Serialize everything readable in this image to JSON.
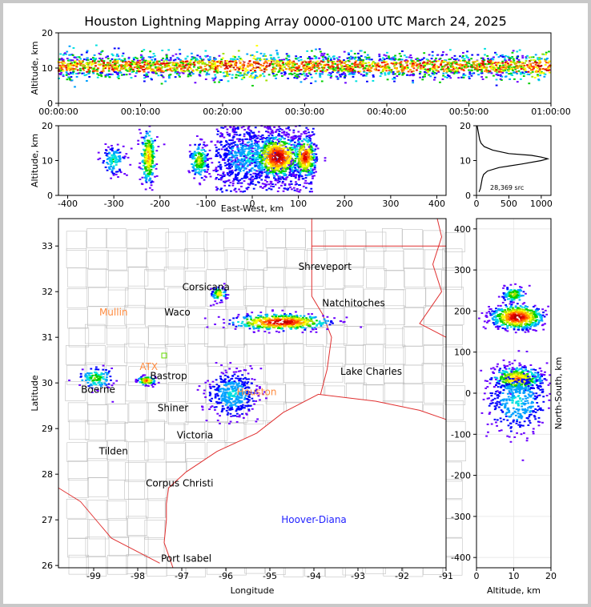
{
  "title": "Houston Lightning Mapping Array 0000-0100 UTC March 24, 2025",
  "colors": {
    "density_scale": [
      "#6a00ff",
      "#0000ff",
      "#00a0ff",
      "#00e0e0",
      "#00d000",
      "#a0e000",
      "#ffff00",
      "#ffa000",
      "#ff4000",
      "#e00000",
      "#b00000",
      "#ffffff"
    ],
    "coastline": "#e03030",
    "borders": "#c0c0c0",
    "state_border": "#e03030",
    "profile_line": "#000000"
  },
  "source_count_label": "28,369 src",
  "chart_data": [
    {
      "id": "time_altitude",
      "type": "scatter",
      "xlabel": "",
      "ylabel": "Altitude, km",
      "x_ticks": [
        "00:00:00",
        "00:10:00",
        "00:20:00",
        "00:30:00",
        "00:40:00",
        "00:50:00",
        "01:00:00"
      ],
      "xlim": [
        "00:00:00",
        "01:00:00"
      ],
      "ylim": [
        0,
        20
      ],
      "y_ticks": [
        0,
        10,
        20
      ],
      "band_center_km": 10.5,
      "band_half_width_km": 3.5
    },
    {
      "id": "eastwest_altitude",
      "type": "scatter",
      "xlabel": "East-West, km",
      "ylabel": "Altitude, km",
      "xlim": [
        -420,
        420
      ],
      "ylim": [
        0,
        20
      ],
      "x_ticks": [
        -400,
        -300,
        -200,
        -100,
        0,
        100,
        200,
        300,
        400
      ],
      "y_ticks": [
        0,
        10,
        20
      ],
      "clusters": [
        {
          "x": -300,
          "y": 10,
          "sx": 12,
          "sy": 2,
          "n": 120,
          "peak": 4
        },
        {
          "x": -225,
          "y": 11,
          "sx": 8,
          "sy": 4,
          "n": 260,
          "peak": 8
        },
        {
          "x": -115,
          "y": 10,
          "sx": 10,
          "sy": 2.5,
          "n": 180,
          "peak": 6
        },
        {
          "x": -5,
          "y": 11,
          "sx": 40,
          "sy": 4,
          "n": 500,
          "peak": 3
        },
        {
          "x": 55,
          "y": 11,
          "sx": 25,
          "sy": 3,
          "n": 600,
          "peak": 11
        },
        {
          "x": 115,
          "y": 11,
          "sx": 12,
          "sy": 3,
          "n": 300,
          "peak": 10
        }
      ]
    },
    {
      "id": "altitude_histogram",
      "type": "line",
      "xlim": [
        0,
        1150
      ],
      "ylim": [
        0,
        20
      ],
      "x_ticks": [
        0,
        500,
        1000
      ],
      "y_ticks": [
        0,
        10,
        20
      ],
      "points": [
        [
          40,
          1
        ],
        [
          60,
          2
        ],
        [
          70,
          3
        ],
        [
          80,
          4
        ],
        [
          90,
          5
        ],
        [
          110,
          6
        ],
        [
          170,
          7
        ],
        [
          350,
          8
        ],
        [
          700,
          9
        ],
        [
          1000,
          10
        ],
        [
          1100,
          10.5
        ],
        [
          1000,
          11
        ],
        [
          850,
          11.5
        ],
        [
          500,
          12
        ],
        [
          250,
          13
        ],
        [
          120,
          14
        ],
        [
          70,
          15
        ],
        [
          50,
          16
        ],
        [
          40,
          17
        ],
        [
          30,
          18
        ],
        [
          20,
          19
        ],
        [
          10,
          20
        ]
      ]
    },
    {
      "id": "plan_view",
      "type": "scatter",
      "xlabel": "Longitude",
      "ylabel": "Latitude",
      "xlim": [
        -99.8,
        -91
      ],
      "ylim": [
        25.95,
        33.6
      ],
      "x_ticks": [
        -99,
        -98,
        -97,
        -96,
        -95,
        -94,
        -93,
        -92,
        -91
      ],
      "y_ticks": [
        26,
        27,
        28,
        29,
        30,
        31,
        32,
        33
      ],
      "cities": [
        {
          "name": "Shreveport",
          "lon": -93.75,
          "lat": 32.55,
          "color": "#000000"
        },
        {
          "name": "Corsicana",
          "lon": -96.45,
          "lat": 32.1,
          "color": "#000000"
        },
        {
          "name": "Natchitoches",
          "lon": -93.1,
          "lat": 31.75,
          "color": "#000000"
        },
        {
          "name": "Mullin",
          "lon": -98.55,
          "lat": 31.55,
          "color": "#ff8c40"
        },
        {
          "name": "Waco",
          "lon": -97.1,
          "lat": 31.55,
          "color": "#000000"
        },
        {
          "name": "ATX",
          "lon": -97.75,
          "lat": 30.35,
          "color": "#ff8c40"
        },
        {
          "name": "Bastrop",
          "lon": -97.3,
          "lat": 30.15,
          "color": "#000000"
        },
        {
          "name": "Lake Charles",
          "lon": -92.7,
          "lat": 30.25,
          "color": "#000000"
        },
        {
          "name": "Boerne",
          "lon": -98.9,
          "lat": 29.85,
          "color": "#000000"
        },
        {
          "name": "Houston",
          "lon": -95.3,
          "lat": 29.8,
          "color": "#ff8c40"
        },
        {
          "name": "Shiner",
          "lon": -97.2,
          "lat": 29.45,
          "color": "#000000"
        },
        {
          "name": "Victoria",
          "lon": -96.7,
          "lat": 28.85,
          "color": "#000000"
        },
        {
          "name": "Tilden",
          "lon": -98.55,
          "lat": 28.5,
          "color": "#000000"
        },
        {
          "name": "Corpus Christi",
          "lon": -97.05,
          "lat": 27.8,
          "color": "#000000"
        },
        {
          "name": "Hoover-Diana",
          "lon": -94.0,
          "lat": 27.0,
          "color": "#2222ff"
        },
        {
          "name": "Port Isabel",
          "lon": -96.9,
          "lat": 26.15,
          "color": "#000000"
        }
      ],
      "clusters": [
        {
          "lon": -94.75,
          "lat": 31.33,
          "slon": 0.55,
          "slat": 0.09,
          "n": 500,
          "peak": 11
        },
        {
          "lon": -96.15,
          "lat": 31.95,
          "slon": 0.08,
          "slat": 0.08,
          "n": 80,
          "peak": 7
        },
        {
          "lon": -97.8,
          "lat": 30.05,
          "slon": 0.1,
          "slat": 0.05,
          "n": 100,
          "peak": 9
        },
        {
          "lon": -98.95,
          "lat": 30.1,
          "slon": 0.2,
          "slat": 0.12,
          "n": 120,
          "peak": 5
        },
        {
          "lon": -95.85,
          "lat": 29.75,
          "slon": 0.28,
          "slat": 0.25,
          "n": 400,
          "peak": 3
        }
      ]
    },
    {
      "id": "altitude_northsouth",
      "type": "scatter",
      "xlabel": "Altitude, km",
      "ylabel": "North-South, km",
      "xlim": [
        0,
        20
      ],
      "ylim": [
        -425,
        425
      ],
      "x_ticks": [
        0,
        10,
        20
      ],
      "y_ticks": [
        -400,
        -300,
        -200,
        -100,
        0,
        100,
        200,
        300,
        400
      ],
      "clusters": [
        {
          "alt": 11,
          "ns": 185,
          "salt": 3.5,
          "sns": 15,
          "n": 600,
          "peak": 11
        },
        {
          "alt": 10,
          "ns": 240,
          "salt": 1.5,
          "sns": 10,
          "n": 120,
          "peak": 6
        },
        {
          "alt": 11,
          "ns": 35,
          "salt": 3.5,
          "sns": 15,
          "n": 400,
          "peak": 8
        },
        {
          "alt": 11,
          "ns": -20,
          "salt": 4,
          "sns": 40,
          "n": 400,
          "peak": 3
        }
      ]
    }
  ]
}
